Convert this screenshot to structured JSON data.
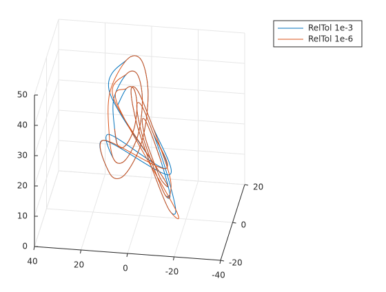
{
  "chart_data": {
    "type": "line3d",
    "xlim": [
      -20,
      20
    ],
    "xticks": [
      -20,
      0,
      20
    ],
    "ylim": [
      -40,
      40
    ],
    "yticks": [
      -40,
      -20,
      0,
      20,
      40
    ],
    "zlim": [
      0,
      50
    ],
    "zticks": [
      0,
      10,
      20,
      30,
      40,
      50
    ],
    "grid": true,
    "legend": "northeast",
    "series": [
      {
        "name": "RelTol 1e-3",
        "color": "#0072BD",
        "x": [
          14,
          12.2,
          8,
          3.8,
          2,
          3.8,
          8,
          12.2,
          17,
          14.4,
          8,
          1.6,
          -1,
          1.6,
          8,
          14.4,
          -17,
          -14.4,
          -8,
          -1.6,
          1,
          -1.6,
          -8,
          -14.4,
          -14,
          -12.2,
          -8,
          -3.8,
          -2,
          -3.8,
          -8,
          -12.2,
          20,
          16.5,
          8,
          -0.5,
          -4,
          -0.5,
          8,
          16.5,
          -20,
          -16.5,
          -8,
          0.5,
          4,
          0.5,
          -8,
          -16.5,
          -17,
          -14.4,
          -8,
          -1.6,
          1,
          -1.6,
          -8,
          -14.4
        ],
        "y": [
          13,
          8.8,
          4.6,
          2.1,
          3,
          7.2,
          11.4,
          13.9,
          15.5,
          9.3,
          3,
          -0.8,
          0.5,
          6.7,
          13,
          16.8,
          -15.5,
          -9.3,
          -3,
          0.8,
          -0.5,
          -6.7,
          -13,
          -16.8,
          -13,
          -8.8,
          -4.6,
          -2.1,
          -3,
          -7.2,
          -11.4,
          -13.9,
          18,
          9.7,
          1.3,
          -3.8,
          -2,
          6.3,
          14.7,
          19.8,
          -18,
          -9.7,
          -1.3,
          3.8,
          2,
          -6.3,
          -14.7,
          -19.8,
          -15.5,
          -9.3,
          -3,
          0.8,
          -0.5,
          -6.7,
          -13,
          -16.8
        ],
        "z": [
          27,
          33.8,
          36.6,
          33.8,
          27,
          20.2,
          17.4,
          20.2,
          27,
          37.2,
          41.4,
          37.2,
          27,
          16.8,
          12.6,
          16.8,
          27,
          37.2,
          41.4,
          37.2,
          27,
          16.8,
          12.6,
          16.8,
          27,
          33.8,
          36.6,
          33.8,
          27,
          20.2,
          17.4,
          20.2,
          27,
          40.6,
          46.2,
          40.6,
          27,
          13.4,
          7.8,
          13.4,
          27,
          40.6,
          46.2,
          40.6,
          27,
          13.4,
          7.8,
          13.4,
          27,
          37.2,
          41.4,
          37.2,
          27,
          16.8,
          12.6,
          16.8
        ]
      },
      {
        "name": "RelTol 1e-6",
        "color": "#D95319",
        "x": [
          -14,
          -12.2,
          -8,
          -3.8,
          -2,
          -3.8,
          -8,
          -12.2,
          17,
          14.4,
          8,
          1.6,
          -1,
          1.6,
          8,
          14.4,
          20,
          16.5,
          8,
          -0.5,
          -4,
          -0.5,
          8,
          16.5,
          -17,
          -14.4,
          -8,
          -1.6,
          1,
          -1.6,
          -8,
          -14.4,
          -20,
          -16.5,
          -8,
          0.5,
          4,
          0.5,
          -8,
          -16.5,
          14,
          12.2,
          8,
          3.8,
          2,
          3.8,
          8,
          12.2
        ],
        "y": [
          -13,
          -8.8,
          -4.6,
          -2.1,
          -3,
          -7.2,
          -11.4,
          -13.9,
          15.5,
          9.3,
          3,
          -0.8,
          0.5,
          6.7,
          13,
          16.8,
          18,
          9.7,
          1.3,
          -3.8,
          -2,
          6.3,
          14.7,
          19.8,
          -15.5,
          -9.3,
          -3,
          0.8,
          -0.5,
          -6.7,
          -13,
          -16.8,
          -18,
          -9.7,
          -1.3,
          3.8,
          2,
          -6.3,
          -14.7,
          -19.8,
          13,
          8.8,
          4.6,
          2.1,
          3,
          7.2,
          11.4,
          13.9
        ],
        "z": [
          27,
          33.8,
          36.6,
          33.8,
          27,
          20.2,
          17.4,
          20.2,
          27,
          37.2,
          41.4,
          37.2,
          27,
          16.8,
          12.6,
          16.8,
          27,
          40.6,
          46.2,
          40.6,
          27,
          13.4,
          7.8,
          13.4,
          27,
          37.2,
          41.4,
          37.2,
          27,
          16.8,
          12.6,
          16.8,
          27,
          40.6,
          46.2,
          40.6,
          27,
          13.4,
          7.8,
          13.4,
          27,
          33.8,
          36.6,
          33.8,
          27,
          20.2,
          17.4,
          20.2
        ]
      }
    ]
  }
}
